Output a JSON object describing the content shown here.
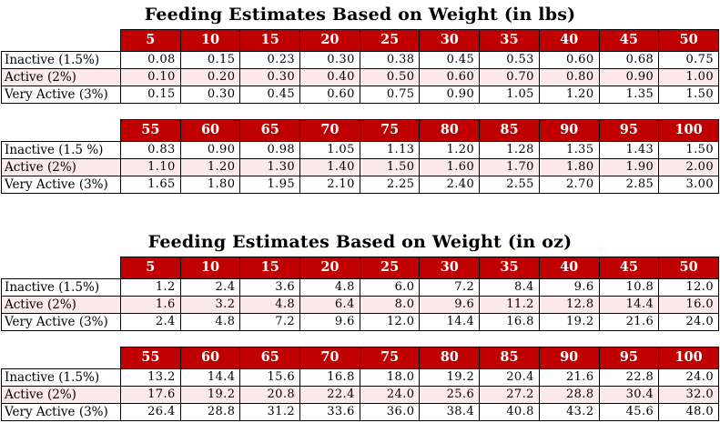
{
  "colors": {
    "header_background": "#C00000",
    "header_text": "#FFFFFF",
    "active_row_background": "#FCE9E9",
    "border": "#000000",
    "page_background": "#FFFFFF"
  },
  "sections": [
    {
      "id": "lbs",
      "title": "Feeding Estimates Based on Weight (in lbs)",
      "tables": [
        {
          "columns": [
            "5",
            "10",
            "15",
            "20",
            "25",
            "30",
            "35",
            "40",
            "45",
            "50"
          ],
          "rows": [
            {
              "label": "Inactive (1.5%)",
              "highlight": false,
              "values": [
                "0.08",
                "0.15",
                "0.23",
                "0.30",
                "0.38",
                "0.45",
                "0.53",
                "0.60",
                "0.68",
                "0.75"
              ]
            },
            {
              "label": "Active (2%)",
              "highlight": true,
              "values": [
                "0.10",
                "0.20",
                "0.30",
                "0.40",
                "0.50",
                "0.60",
                "0.70",
                "0.80",
                "0.90",
                "1.00"
              ]
            },
            {
              "label": "Very Active (3%)",
              "highlight": false,
              "values": [
                "0.15",
                "0.30",
                "0.45",
                "0.60",
                "0.75",
                "0.90",
                "1.05",
                "1.20",
                "1.35",
                "1.50"
              ]
            }
          ]
        },
        {
          "columns": [
            "55",
            "60",
            "65",
            "70",
            "75",
            "80",
            "85",
            "90",
            "95",
            "100"
          ],
          "rows": [
            {
              "label": "Inactive (1.5 %)",
              "highlight": false,
              "values": [
                "0.83",
                "0.90",
                "0.98",
                "1.05",
                "1.13",
                "1.20",
                "1.28",
                "1.35",
                "1.43",
                "1.50"
              ]
            },
            {
              "label": "Active (2%)",
              "highlight": true,
              "values": [
                "1.10",
                "1.20",
                "1.30",
                "1.40",
                "1.50",
                "1.60",
                "1.70",
                "1.80",
                "1.90",
                "2.00"
              ]
            },
            {
              "label": "Very Active (3%)",
              "highlight": false,
              "values": [
                "1.65",
                "1.80",
                "1.95",
                "2.10",
                "2.25",
                "2.40",
                "2.55",
                "2.70",
                "2.85",
                "3.00"
              ]
            }
          ]
        }
      ]
    },
    {
      "id": "oz",
      "title": "Feeding Estimates Based on Weight (in oz)",
      "tables": [
        {
          "columns": [
            "5",
            "10",
            "15",
            "20",
            "25",
            "30",
            "35",
            "40",
            "45",
            "50"
          ],
          "rows": [
            {
              "label": "Inactive (1.5%)",
              "highlight": false,
              "values": [
                "1.2",
                "2.4",
                "3.6",
                "4.8",
                "6.0",
                "7.2",
                "8.4",
                "9.6",
                "10.8",
                "12.0"
              ]
            },
            {
              "label": "Active (2%)",
              "highlight": true,
              "values": [
                "1.6",
                "3.2",
                "4.8",
                "6.4",
                "8.0",
                "9.6",
                "11.2",
                "12.8",
                "14.4",
                "16.0"
              ]
            },
            {
              "label": "Very Active (3%)",
              "highlight": false,
              "values": [
                "2.4",
                "4.8",
                "7.2",
                "9.6",
                "12.0",
                "14.4",
                "16.8",
                "19.2",
                "21.6",
                "24.0"
              ]
            }
          ]
        },
        {
          "columns": [
            "55",
            "60",
            "65",
            "70",
            "75",
            "80",
            "85",
            "90",
            "95",
            "100"
          ],
          "rows": [
            {
              "label": "Inactive (1.5%)",
              "highlight": false,
              "values": [
                "13.2",
                "14.4",
                "15.6",
                "16.8",
                "18.0",
                "19.2",
                "20.4",
                "21.6",
                "22.8",
                "24.0"
              ]
            },
            {
              "label": "Active (2%)",
              "highlight": true,
              "values": [
                "17.6",
                "19.2",
                "20.8",
                "22.4",
                "24.0",
                "25.6",
                "27.2",
                "28.8",
                "30.4",
                "32.0"
              ]
            },
            {
              "label": "Very Active (3%)",
              "highlight": false,
              "values": [
                "26.4",
                "28.8",
                "31.2",
                "33.6",
                "36.0",
                "38.4",
                "40.8",
                "43.2",
                "45.6",
                "48.0"
              ]
            }
          ]
        }
      ]
    }
  ]
}
